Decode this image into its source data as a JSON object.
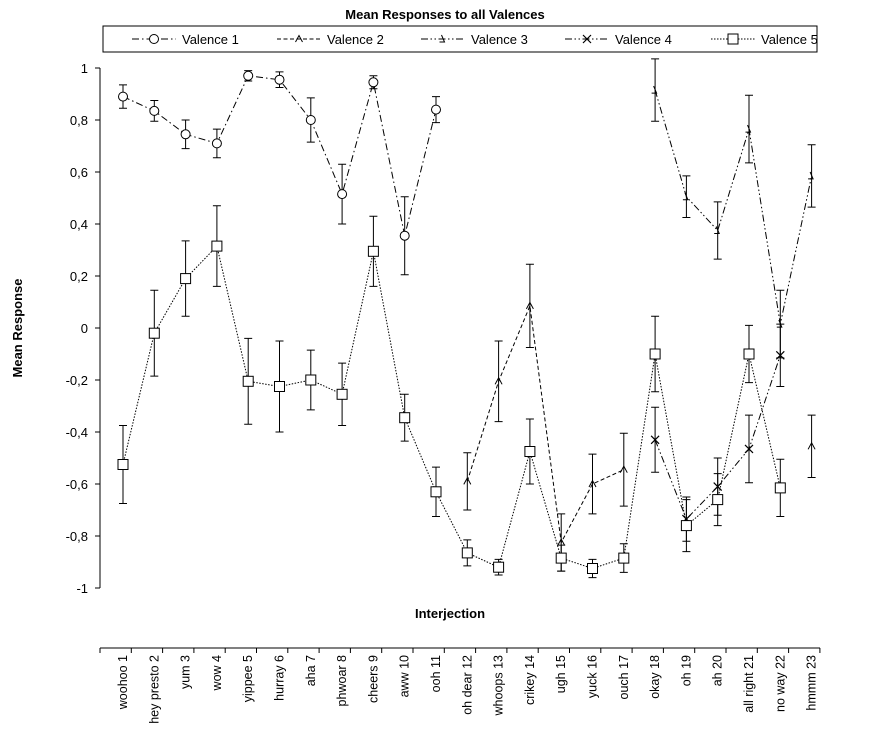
{
  "chart_data": {
    "type": "line",
    "title": "Mean Responses to all Valences",
    "xlabel": "Interjection",
    "ylabel": "Mean Response",
    "ylim": [
      -1,
      1
    ],
    "yticks": [
      1,
      0.8,
      0.6,
      0.4,
      0.2,
      0,
      -0.2,
      -0.4,
      -0.6,
      -0.8,
      -1
    ],
    "ytick_labels": [
      "1",
      "0,8",
      "0,6",
      "0,4",
      "0,2",
      "0",
      "-0,2",
      "-0,4",
      "-0,6",
      "-0,8",
      "-1"
    ],
    "grid": false,
    "legend_position": "top",
    "categories": [
      "woohoo 1",
      "hey presto 2",
      "yum 3",
      "wow 4",
      "yippee 5",
      "hurray 6",
      "aha 7",
      "phwoar 8",
      "cheers 9",
      "aww 10",
      "ooh 11",
      "oh dear 12",
      "whoops 13",
      "crikey 14",
      "ugh 15",
      "yuck 16",
      "ouch 17",
      "okay 18",
      "oh 19",
      "ah 20",
      "all right 21",
      "no way 22",
      "hmmm 23"
    ],
    "series": [
      {
        "name": "Valence 1",
        "marker": "circle",
        "dash": "dash-dot",
        "values": [
          0.89,
          0.835,
          0.745,
          0.71,
          0.97,
          0.955,
          0.8,
          0.515,
          0.945,
          0.355,
          0.84,
          null,
          null,
          null,
          null,
          null,
          null,
          null,
          null,
          null,
          null,
          null,
          null
        ],
        "errors": [
          0.045,
          0.04,
          0.055,
          0.055,
          0.02,
          0.03,
          0.085,
          0.115,
          0.025,
          0.15,
          0.05,
          null,
          null,
          null,
          null,
          null,
          null,
          null,
          null,
          null,
          null,
          null,
          null
        ]
      },
      {
        "name": "Valence 2",
        "marker": "diamond",
        "dash": "dashed",
        "values": [
          null,
          null,
          null,
          null,
          null,
          null,
          null,
          null,
          null,
          null,
          null,
          -0.59,
          -0.205,
          0.085,
          -0.825,
          -0.6,
          -0.545,
          null,
          null,
          null,
          null,
          null,
          -0.455
        ],
        "errors": [
          null,
          null,
          null,
          null,
          null,
          null,
          null,
          null,
          null,
          null,
          null,
          0.11,
          0.155,
          0.16,
          0.11,
          0.115,
          0.14,
          null,
          null,
          null,
          null,
          null,
          0.12
        ]
      },
      {
        "name": "Valence 3",
        "marker": "triangle",
        "dash": "dash-dot-dot",
        "values": [
          null,
          null,
          null,
          null,
          null,
          null,
          null,
          null,
          null,
          null,
          null,
          null,
          null,
          null,
          null,
          null,
          null,
          0.915,
          0.505,
          0.375,
          0.765,
          0.015,
          0.585
        ],
        "errors": [
          null,
          null,
          null,
          null,
          null,
          null,
          null,
          null,
          null,
          null,
          null,
          null,
          null,
          null,
          null,
          null,
          null,
          0.12,
          0.08,
          0.11,
          0.13,
          0.13,
          0.12
        ]
      },
      {
        "name": "Valence 4",
        "marker": "x",
        "dash": "dash-dot-dot",
        "values": [
          null,
          null,
          null,
          null,
          null,
          null,
          null,
          null,
          null,
          null,
          null,
          null,
          null,
          null,
          null,
          null,
          null,
          -0.43,
          -0.735,
          -0.61,
          -0.465,
          -0.105,
          null
        ],
        "errors": [
          null,
          null,
          null,
          null,
          null,
          null,
          null,
          null,
          null,
          null,
          null,
          null,
          null,
          null,
          null,
          null,
          null,
          0.125,
          0.085,
          0.11,
          0.13,
          0.12,
          null
        ]
      },
      {
        "name": "Valence 5",
        "marker": "square",
        "dash": "dotted",
        "values": [
          -0.525,
          -0.02,
          0.19,
          0.315,
          -0.205,
          -0.225,
          -0.2,
          -0.255,
          0.295,
          -0.345,
          -0.63,
          -0.865,
          -0.92,
          -0.475,
          -0.885,
          -0.925,
          -0.885,
          -0.1,
          -0.76,
          -0.66,
          -0.1,
          -0.615,
          null
        ],
        "errors": [
          0.15,
          0.165,
          0.145,
          0.155,
          0.165,
          0.175,
          0.115,
          0.12,
          0.135,
          0.09,
          0.095,
          0.05,
          0.03,
          0.125,
          0.05,
          0.035,
          0.055,
          0.145,
          0.1,
          0.1,
          0.11,
          0.11,
          null
        ]
      }
    ]
  }
}
